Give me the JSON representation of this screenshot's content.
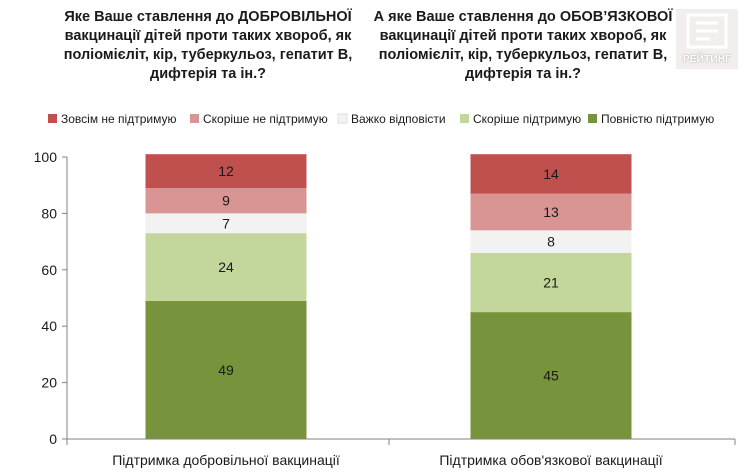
{
  "logo": {
    "text": "РЕЙТИНГ"
  },
  "chart_data": {
    "type": "bar",
    "stacked": true,
    "titles": [
      "Яке Ваше ставлення до ДОБРОВІЛЬНОЇ вакцинації дітей проти таких хвороб, як поліомієліт, кір, туберкульоз, гепатит В, дифтерія та ін.?",
      "А яке Ваше ставлення до ОБОВ’ЯЗКОВОЇ вакцинації дітей проти таких хвороб, як поліомієліт, кір, туберкульоз, гепатит В, дифтерія та ін.?"
    ],
    "categories": [
      "Підтримка добровільної вакцинації",
      "Підтримка обов'язкової вакцинації"
    ],
    "series": [
      {
        "name": "Повністю підтримую",
        "color": "#77933c",
        "values": [
          49,
          45
        ]
      },
      {
        "name": "Скоріше підтримую",
        "color": "#c3d69b",
        "values": [
          24,
          21
        ]
      },
      {
        "name": "Важко відповісти",
        "color": "#f2f2f2",
        "values": [
          7,
          8
        ]
      },
      {
        "name": "Скоріше не підтримую",
        "color": "#d99594",
        "values": [
          9,
          13
        ]
      },
      {
        "name": "Зовсім не підтримую",
        "color": "#c0504d",
        "values": [
          12,
          14
        ]
      }
    ],
    "legend_order": [
      "Зовсім не підтримую",
      "Скоріше не підтримую",
      "Важко відповісти",
      "Скоріше підтримую",
      "Повністю підтримую"
    ],
    "legend_position": "top",
    "ylim": [
      0,
      100
    ],
    "yticks": [
      0,
      20,
      40,
      60,
      80,
      100
    ],
    "grid": false
  }
}
